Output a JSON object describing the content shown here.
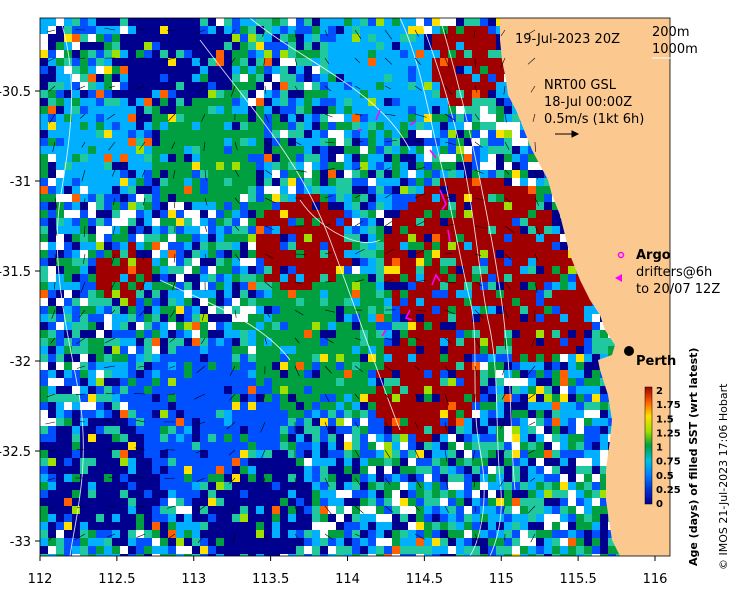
{
  "map": {
    "date_label": "19-Jul-2023 20Z",
    "depth_legend": {
      "contour_1": "200m",
      "contour_2": "1000m"
    },
    "current_info": {
      "line1": "NRT00 GSL",
      "line2": "18-Jul 00:00Z",
      "line3": "0.5m/s (1kt 6h)"
    },
    "argo_label": "Argo",
    "drifters_line1": "drifters@6h",
    "drifters_line2": "to 20/07 12Z",
    "city_label": "Perth",
    "credit": "© IMOS 21-Jul-2023 17:06 Hobart",
    "colorbar_title": "Age (days) of filled SST (wrt latest)",
    "colorbar_ticks": [
      "2",
      "1.75",
      "1.5",
      "1.25",
      "1",
      "0.75",
      "0.5",
      "0.25",
      "0"
    ],
    "x_ticks": [
      "112",
      "112.5",
      "113",
      "113.5",
      "114",
      "114.5",
      "115",
      "115.5",
      "116"
    ],
    "y_ticks": [
      "-30.5",
      "-31",
      "-31.5",
      "-32",
      "-32.5",
      "-33"
    ],
    "colors": {
      "land": "#fbc890",
      "age_0": "#00008f",
      "age_025": "#0050ff",
      "age_05": "#00b0ff",
      "age_075": "#20c8a0",
      "age_1": "#00a040",
      "age_125": "#a0e000",
      "age_15": "#ffe000",
      "age_175": "#ff6000",
      "age_2": "#a00000",
      "drifter": "#ff00ff"
    }
  }
}
